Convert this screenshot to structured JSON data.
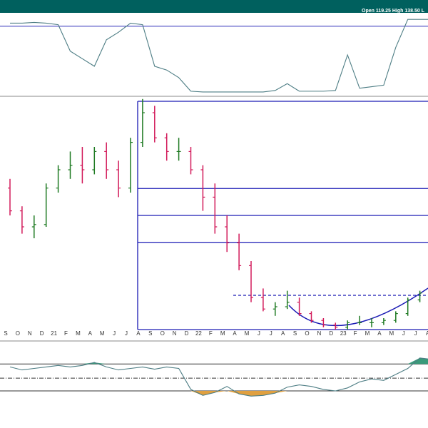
{
  "header": {
    "open_label": "Open",
    "open": "119.25",
    "high_label": "High",
    "high": "138.50",
    "low_label": "L"
  },
  "chart_data": [
    {
      "type": "line",
      "ylim": [
        0,
        100
      ],
      "levels": [
        88
      ],
      "color": "#4d7d84",
      "level_color": "#2a2ab8",
      "values": [
        92,
        92,
        93,
        92,
        90,
        55,
        45,
        35,
        70,
        80,
        92,
        90,
        35,
        30,
        20,
        2,
        1,
        1,
        1,
        1,
        1,
        1,
        3,
        12,
        2,
        2,
        2,
        3,
        50,
        6,
        8,
        10,
        60,
        97,
        97,
        97
      ]
    },
    {
      "type": "ohlc",
      "ylim": [
        0,
        100
      ],
      "up_color": "#1e7a22",
      "down_color": "#d21a5a",
      "level_color": "#1a1ab4",
      "categories": [
        "S",
        "O",
        "N",
        "D",
        "21",
        "F",
        "M",
        "A",
        "M",
        "J",
        "J",
        "A",
        "S",
        "O",
        "N",
        "D",
        "22",
        "F",
        "M",
        "A",
        "M",
        "J",
        "J",
        "A",
        "S",
        "O",
        "N",
        "D",
        "23",
        "F",
        "M",
        "A",
        "M",
        "J",
        "J",
        "A"
      ],
      "open": [
        62,
        52,
        45,
        46,
        62,
        70,
        72,
        70,
        78,
        70,
        62,
        82,
        95,
        84,
        78,
        78,
        70,
        58,
        45,
        38,
        28,
        14,
        9,
        10,
        12,
        7,
        4,
        2,
        1,
        3,
        3,
        3,
        4,
        7,
        13,
        16
      ],
      "high": [
        66,
        54,
        50,
        64,
        72,
        78,
        80,
        80,
        82,
        74,
        84,
        101,
        98,
        86,
        84,
        80,
        72,
        64,
        50,
        42,
        30,
        18,
        12,
        17,
        14,
        8,
        5,
        3,
        4,
        6,
        5,
        5,
        8,
        14,
        17,
        17
      ],
      "low": [
        50,
        42,
        40,
        45,
        60,
        66,
        64,
        68,
        66,
        58,
        60,
        80,
        82,
        74,
        74,
        68,
        52,
        42,
        34,
        26,
        12,
        8,
        6,
        9,
        6,
        3,
        1,
        0,
        0,
        2,
        1,
        2,
        3,
        6,
        12,
        13
      ],
      "close": [
        52,
        45,
        46,
        62,
        70,
        72,
        70,
        78,
        70,
        62,
        82,
        95,
        84,
        78,
        78,
        70,
        58,
        45,
        38,
        28,
        14,
        9,
        10,
        12,
        7,
        4,
        2,
        1,
        3,
        3,
        3,
        4,
        7,
        13,
        16,
        15
      ],
      "levels": [
        100,
        61.8,
        50,
        38.2,
        0
      ],
      "resistance": 15
    },
    {
      "type": "line",
      "ylim": [
        0,
        100
      ],
      "levels": [
        76,
        57,
        40
      ],
      "color": "#4d7d84",
      "low_fill": "#e0a040",
      "high_fill": "#3a9a7a",
      "values": [
        72,
        68,
        70,
        72,
        74,
        72,
        74,
        78,
        72,
        68,
        70,
        72,
        69,
        72,
        70,
        42,
        34,
        38,
        46,
        36,
        33,
        34,
        37,
        45,
        48,
        46,
        42,
        40,
        44,
        52,
        56,
        54,
        62,
        70,
        84,
        82
      ]
    }
  ]
}
